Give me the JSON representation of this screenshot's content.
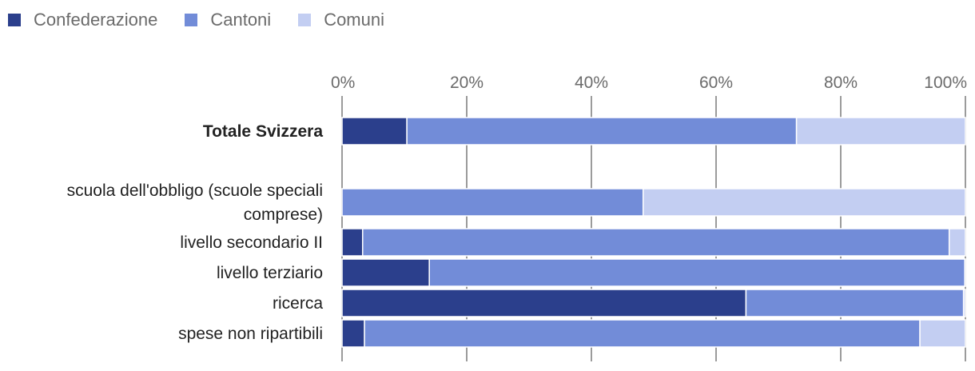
{
  "chart_data": {
    "type": "bar",
    "orientation": "horizontal",
    "stacked": true,
    "title": "",
    "xlabel": "",
    "ylabel": "",
    "xlim": [
      0,
      100
    ],
    "x_ticks": [
      "0%",
      "20%",
      "40%",
      "60%",
      "80%",
      "100%"
    ],
    "legend_position": "top-left",
    "grid": true,
    "categories": [
      "Totale Svizzera",
      "scuola dell'obbligo (scuole speciali comprese)",
      "livello secondario II",
      "livello terziario",
      "ricerca",
      "spese non ripartibili"
    ],
    "category_lines": [
      [
        "Totale Svizzera"
      ],
      [
        "scuola dell'obbligo (scuole speciali",
        "comprese)"
      ],
      [
        "livello secondario II"
      ],
      [
        "livello terziario"
      ],
      [
        "ricerca"
      ],
      [
        "spese non ripartibili"
      ]
    ],
    "bold_categories": [
      "Totale Svizzera"
    ],
    "series": [
      {
        "name": "Confederazione",
        "color": "#2b3f8c",
        "values": [
          10.4,
          0,
          3.3,
          14.0,
          64.8,
          3.6
        ]
      },
      {
        "name": "Cantoni",
        "color": "#728cd8",
        "values": [
          62.5,
          48.3,
          94.1,
          85.9,
          34.9,
          89.1
        ]
      },
      {
        "name": "Comuni",
        "color": "#c3cef2",
        "values": [
          27.1,
          51.7,
          2.6,
          0.1,
          0.3,
          7.3
        ]
      }
    ]
  }
}
